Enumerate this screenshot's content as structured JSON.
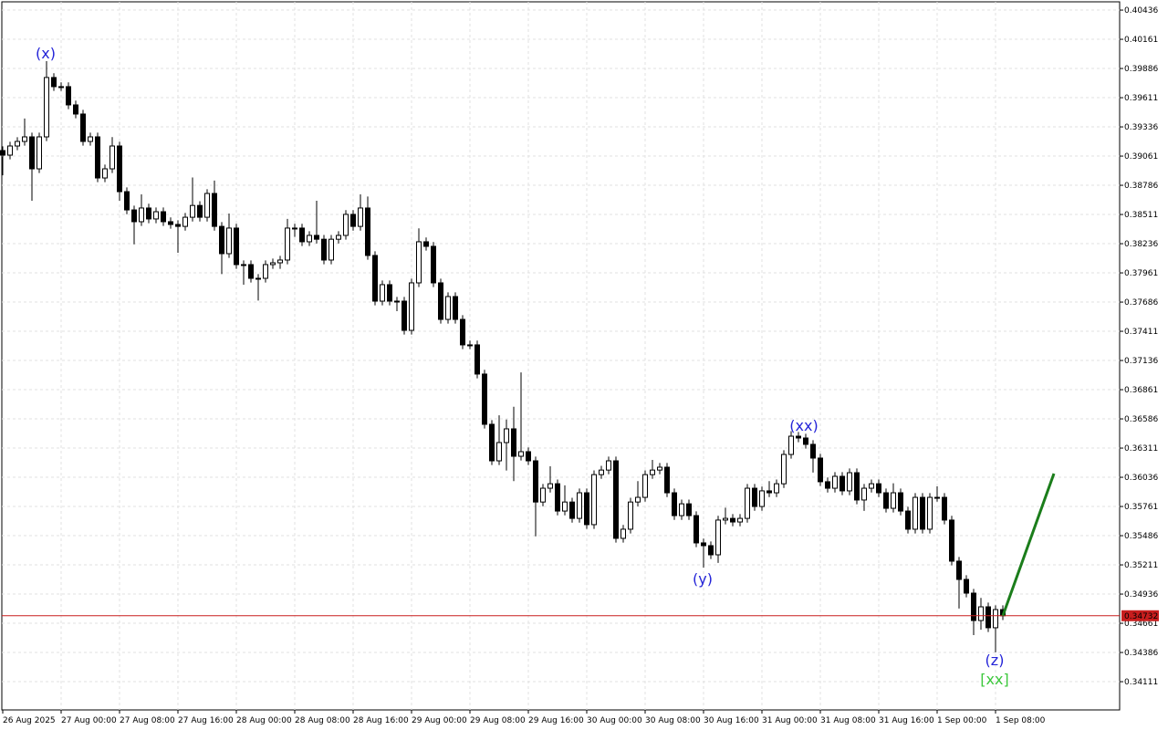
{
  "chart_data": {
    "type": "candlestick",
    "up_color": "#ffffff",
    "down_color": "#000000",
    "outline_color": "#000000",
    "grid": true,
    "grid_color": "#e2e2e2",
    "ylim": [
      0.33845,
      0.40531
    ],
    "yticks": [
      0.40436,
      0.40161,
      0.39886,
      0.39611,
      0.39336,
      0.39061,
      0.38786,
      0.38511,
      0.38236,
      0.37961,
      0.37686,
      0.37411,
      0.37136,
      0.36861,
      0.36586,
      0.36311,
      0.36036,
      0.35761,
      0.35486,
      0.35211,
      0.34936,
      0.34661,
      0.34386,
      0.34111
    ],
    "x_labels": [
      "26 Aug 2025",
      "27 Aug 00:00",
      "27 Aug 08:00",
      "27 Aug 16:00",
      "28 Aug 00:00",
      "28 Aug 08:00",
      "28 Aug 16:00",
      "29 Aug 00:00",
      "29 Aug 08:00",
      "29 Aug 16:00",
      "30 Aug 00:00",
      "30 Aug 08:00",
      "30 Aug 16:00",
      "31 Aug 00:00",
      "31 Aug 08:00",
      "31 Aug 16:00",
      "1 Sep 00:00",
      "1 Sep 08:00"
    ],
    "current_price": {
      "value": 0.34732,
      "color": "#c81e1e"
    },
    "projection": {
      "color": "#1b7d1b",
      "values": [
        0.34732,
        0.36071
      ]
    },
    "annotations": [
      {
        "text": "(x)",
        "color": "#2424d8"
      },
      {
        "text": "(y)",
        "color": "#2424d8"
      },
      {
        "text": "(xx)",
        "color": "#2424d8"
      },
      {
        "text": "(z)",
        "color": "#2424d8"
      },
      {
        "text": "[xx]",
        "color": "#3cc83c"
      }
    ],
    "open": [
      0.39113,
      0.3907,
      0.39156,
      0.39199,
      0.39242,
      0.38941,
      0.39242,
      0.39801,
      0.39715,
      0.39715,
      0.39543,
      0.39457,
      0.39199,
      0.39242,
      0.38855,
      0.38941,
      0.39156,
      0.38726,
      0.38554,
      0.38443,
      0.38572,
      0.38469,
      0.38537,
      0.38443,
      0.38417,
      0.38399,
      0.38485,
      0.38596,
      0.38485,
      0.38709,
      0.38399,
      0.38142,
      0.38383,
      0.38039,
      0.38039,
      0.3791,
      0.3791,
      0.38039,
      0.38056,
      0.38082,
      0.38383,
      0.38383,
      0.38254,
      0.38314,
      0.38278,
      0.38082,
      0.38278,
      0.38314,
      0.38512,
      0.38399,
      0.38572,
      0.38125,
      0.37695,
      0.3785,
      0.37695,
      0.37695,
      0.3742,
      0.37867,
      0.38254,
      0.38211,
      0.37867,
      0.37523,
      0.37738,
      0.37523,
      0.37283,
      0.37283,
      0.37008,
      0.36535,
      0.36191,
      0.36363,
      0.36492,
      0.36234,
      0.36277,
      0.36191,
      0.35803,
      0.35933,
      0.35975,
      0.35718,
      0.35803,
      0.35649,
      0.3589,
      0.3559,
      0.36061,
      0.36104,
      0.36191,
      0.35461,
      0.35547,
      0.35803,
      0.35847,
      0.36061,
      0.36104,
      0.36131,
      0.3589,
      0.35675,
      0.35786,
      0.35675,
      0.35418,
      0.35392,
      0.35306,
      0.35633,
      0.35649,
      0.35615,
      0.35649,
      0.35933,
      0.35761,
      0.35908,
      0.3589,
      0.35975,
      0.36251,
      0.36423,
      0.36406,
      0.36346,
      0.36217,
      0.35994,
      0.35933,
      0.36045,
      0.35908,
      0.36079,
      0.35822,
      0.35933,
      0.35975,
      0.3589,
      0.35744,
      0.3589,
      0.35718,
      0.35547,
      0.35847,
      0.35547,
      0.35847,
      0.35847,
      0.35633,
      0.35246,
      0.35074,
      0.34945,
      0.34687,
      0.34816,
      0.34619,
      0.3479
    ],
    "high": [
      0.39153,
      0.39196,
      0.39239,
      0.39415,
      0.39282,
      0.39282,
      0.39955,
      0.39841,
      0.39755,
      0.39755,
      0.39583,
      0.39497,
      0.39282,
      0.39282,
      0.38981,
      0.3924,
      0.39196,
      0.38766,
      0.38594,
      0.387,
      0.38612,
      0.38577,
      0.38577,
      0.38483,
      0.38457,
      0.38525,
      0.3886,
      0.38636,
      0.38749,
      0.3883,
      0.38439,
      0.3852,
      0.38423,
      0.38079,
      0.38079,
      0.3795,
      0.38079,
      0.38096,
      0.38122,
      0.3847,
      0.38423,
      0.38423,
      0.38354,
      0.3864,
      0.38318,
      0.38318,
      0.38354,
      0.38552,
      0.38552,
      0.387,
      0.3868,
      0.38165,
      0.3789,
      0.3789,
      0.37735,
      0.37735,
      0.37907,
      0.3838,
      0.38294,
      0.38251,
      0.37907,
      0.37778,
      0.37778,
      0.37563,
      0.37323,
      0.37323,
      0.37048,
      0.36575,
      0.3662,
      0.3658,
      0.367,
      0.37024,
      0.36317,
      0.36231,
      0.35973,
      0.3614,
      0.36015,
      0.3596,
      0.35843,
      0.3593,
      0.3593,
      0.36101,
      0.36144,
      0.36231,
      0.36231,
      0.35587,
      0.35843,
      0.36,
      0.36101,
      0.362,
      0.36171,
      0.36171,
      0.3593,
      0.35826,
      0.35826,
      0.35715,
      0.35458,
      0.35432,
      0.35673,
      0.3575,
      0.35689,
      0.35689,
      0.35973,
      0.35973,
      0.35948,
      0.36,
      0.36015,
      0.36291,
      0.3647,
      0.36463,
      0.36446,
      0.36386,
      0.36257,
      0.36034,
      0.36085,
      0.36085,
      0.36119,
      0.36119,
      0.35973,
      0.36015,
      0.36015,
      0.3593,
      0.3598,
      0.3593,
      0.35758,
      0.35887,
      0.35887,
      0.35887,
      0.3595,
      0.35887,
      0.35673,
      0.35286,
      0.35114,
      0.34985,
      0.349,
      0.34856,
      0.3483,
      0.3483
    ],
    "low": [
      0.3888,
      0.3903,
      0.39116,
      0.39159,
      0.3864,
      0.38901,
      0.39202,
      0.39675,
      0.39675,
      0.39503,
      0.39417,
      0.39159,
      0.39159,
      0.38815,
      0.38815,
      0.38901,
      0.3864,
      0.38514,
      0.3823,
      0.38403,
      0.38429,
      0.38429,
      0.38403,
      0.38377,
      0.3815,
      0.38359,
      0.38445,
      0.38445,
      0.38445,
      0.38359,
      0.3795,
      0.38102,
      0.37999,
      0.3785,
      0.3787,
      0.377,
      0.3787,
      0.37999,
      0.37999,
      0.38042,
      0.383,
      0.38214,
      0.38214,
      0.38238,
      0.38042,
      0.38042,
      0.38238,
      0.38274,
      0.38359,
      0.38359,
      0.38085,
      0.37655,
      0.37655,
      0.37655,
      0.376,
      0.3738,
      0.3738,
      0.37827,
      0.38171,
      0.37827,
      0.37483,
      0.37483,
      0.37483,
      0.37243,
      0.37243,
      0.36968,
      0.36495,
      0.36151,
      0.36151,
      0.361,
      0.36,
      0.36194,
      0.36151,
      0.3548,
      0.35763,
      0.35893,
      0.35678,
      0.35678,
      0.35609,
      0.35609,
      0.3555,
      0.3555,
      0.36021,
      0.36064,
      0.35421,
      0.35421,
      0.35507,
      0.35763,
      0.35807,
      0.36021,
      0.36064,
      0.3585,
      0.35635,
      0.35635,
      0.35635,
      0.35378,
      0.35186,
      0.35266,
      0.3523,
      0.35593,
      0.35575,
      0.35575,
      0.35609,
      0.35721,
      0.35721,
      0.3585,
      0.3585,
      0.35935,
      0.36211,
      0.36366,
      0.36306,
      0.3608,
      0.35954,
      0.35893,
      0.35893,
      0.35868,
      0.35868,
      0.35782,
      0.3572,
      0.35893,
      0.3585,
      0.35704,
      0.35704,
      0.35678,
      0.35507,
      0.35507,
      0.35507,
      0.35507,
      0.35807,
      0.35593,
      0.35206,
      0.348,
      0.34905,
      0.3455,
      0.346,
      0.34579,
      0.34387,
      0.34692
    ],
    "close": [
      0.3907,
      0.39156,
      0.39199,
      0.39242,
      0.38941,
      0.39242,
      0.39801,
      0.39715,
      0.39715,
      0.39543,
      0.39457,
      0.39199,
      0.39242,
      0.38855,
      0.38941,
      0.39156,
      0.38726,
      0.38554,
      0.38443,
      0.38572,
      0.38469,
      0.38537,
      0.38443,
      0.38417,
      0.38399,
      0.38485,
      0.38596,
      0.38485,
      0.38709,
      0.38399,
      0.38142,
      0.38383,
      0.38039,
      0.38039,
      0.3791,
      0.3791,
      0.38039,
      0.38056,
      0.38082,
      0.38383,
      0.38383,
      0.38254,
      0.38314,
      0.38278,
      0.38082,
      0.38278,
      0.38314,
      0.38512,
      0.38399,
      0.38572,
      0.38125,
      0.37695,
      0.3785,
      0.37695,
      0.37695,
      0.3742,
      0.37867,
      0.38254,
      0.38211,
      0.37867,
      0.37523,
      0.37738,
      0.37523,
      0.37283,
      0.37283,
      0.37008,
      0.36535,
      0.36191,
      0.36363,
      0.36492,
      0.36234,
      0.36277,
      0.36191,
      0.35803,
      0.35933,
      0.35975,
      0.35718,
      0.35803,
      0.35649,
      0.3589,
      0.3559,
      0.36061,
      0.36104,
      0.36191,
      0.35461,
      0.35547,
      0.35803,
      0.35847,
      0.36061,
      0.36104,
      0.36131,
      0.3589,
      0.35675,
      0.35786,
      0.35675,
      0.35418,
      0.35392,
      0.35306,
      0.35633,
      0.35649,
      0.35615,
      0.35649,
      0.35933,
      0.35761,
      0.35908,
      0.3589,
      0.35975,
      0.36251,
      0.36423,
      0.36406,
      0.36346,
      0.36217,
      0.35994,
      0.35933,
      0.36045,
      0.35908,
      0.36079,
      0.35822,
      0.35933,
      0.35975,
      0.3589,
      0.35744,
      0.3589,
      0.35718,
      0.35547,
      0.35847,
      0.35547,
      0.35847,
      0.35847,
      0.35633,
      0.35246,
      0.35074,
      0.34945,
      0.34687,
      0.34816,
      0.34619,
      0.3479,
      0.34732
    ]
  }
}
